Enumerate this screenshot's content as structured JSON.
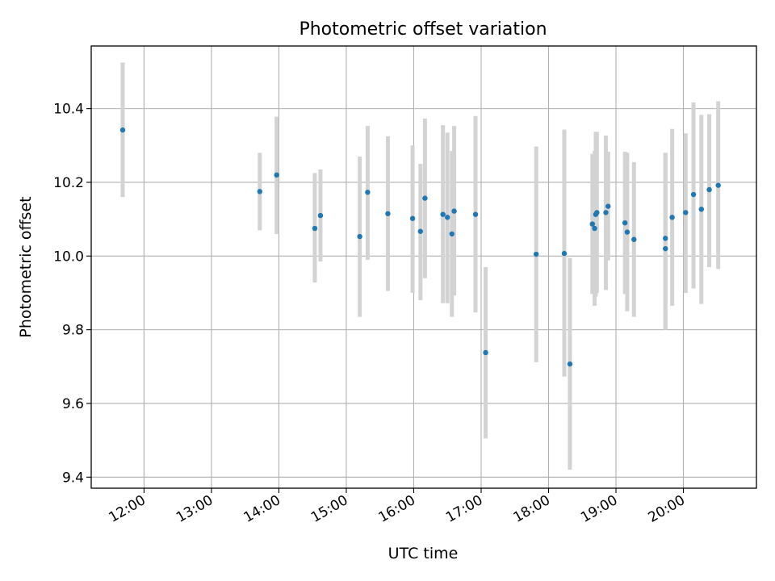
{
  "chart_data": {
    "type": "scatter",
    "title": "Photometric offset variation",
    "xlabel": "UTC time",
    "ylabel": "Photometric offset",
    "xlim": [
      "11:13",
      "21:05"
    ],
    "ylim": [
      9.37,
      10.57
    ],
    "x_ticks": [
      "12:00",
      "13:00",
      "14:00",
      "15:00",
      "16:00",
      "17:00",
      "18:00",
      "19:00",
      "20:00"
    ],
    "y_ticks": [
      9.4,
      9.6,
      9.8,
      10.0,
      10.2,
      10.4
    ],
    "y_tick_labels": [
      "9.4",
      "9.6",
      "9.8",
      "10.0",
      "10.2",
      "10.4"
    ],
    "grid": true,
    "marker_color": "#1f77b4",
    "errorbar_color": "#d3d3d3",
    "points": [
      {
        "time": "11:41",
        "y": 10.342,
        "lo": 10.16,
        "hi": 10.525
      },
      {
        "time": "13:43",
        "y": 10.175,
        "lo": 10.07,
        "hi": 10.28
      },
      {
        "time": "13:58",
        "y": 10.22,
        "lo": 10.06,
        "hi": 10.378
      },
      {
        "time": "14:32",
        "y": 10.075,
        "lo": 9.928,
        "hi": 10.225
      },
      {
        "time": "14:37",
        "y": 10.11,
        "lo": 9.985,
        "hi": 10.235
      },
      {
        "time": "15:12",
        "y": 10.053,
        "lo": 9.835,
        "hi": 10.27
      },
      {
        "time": "15:19",
        "y": 10.173,
        "lo": 9.99,
        "hi": 10.353
      },
      {
        "time": "15:37",
        "y": 10.115,
        "lo": 9.905,
        "hi": 10.325
      },
      {
        "time": "15:59",
        "y": 10.102,
        "lo": 9.9,
        "hi": 10.3
      },
      {
        "time": "16:06",
        "y": 10.067,
        "lo": 9.88,
        "hi": 10.25
      },
      {
        "time": "16:10",
        "y": 10.157,
        "lo": 9.94,
        "hi": 10.373
      },
      {
        "time": "16:26",
        "y": 10.113,
        "lo": 9.872,
        "hi": 10.355
      },
      {
        "time": "16:30",
        "y": 10.105,
        "lo": 9.872,
        "hi": 10.335
      },
      {
        "time": "16:34",
        "y": 10.06,
        "lo": 9.835,
        "hi": 10.285
      },
      {
        "time": "16:36",
        "y": 10.122,
        "lo": 9.893,
        "hi": 10.353
      },
      {
        "time": "16:55",
        "y": 10.113,
        "lo": 9.847,
        "hi": 10.38
      },
      {
        "time": "17:04",
        "y": 9.738,
        "lo": 9.505,
        "hi": 9.97
      },
      {
        "time": "17:49",
        "y": 10.005,
        "lo": 9.712,
        "hi": 10.297
      },
      {
        "time": "18:14",
        "y": 10.007,
        "lo": 9.673,
        "hi": 10.343
      },
      {
        "time": "18:19",
        "y": 9.707,
        "lo": 9.42,
        "hi": 9.995
      },
      {
        "time": "18:39",
        "y": 10.087,
        "lo": 9.897,
        "hi": 10.277
      },
      {
        "time": "18:41",
        "y": 10.075,
        "lo": 9.865,
        "hi": 10.285
      },
      {
        "time": "18:42",
        "y": 10.113,
        "lo": 9.89,
        "hi": 10.337
      },
      {
        "time": "18:43",
        "y": 10.118,
        "lo": 9.9,
        "hi": 10.337
      },
      {
        "time": "18:51",
        "y": 10.118,
        "lo": 9.908,
        "hi": 10.327
      },
      {
        "time": "18:53",
        "y": 10.135,
        "lo": 9.988,
        "hi": 10.283
      },
      {
        "time": "19:08",
        "y": 10.09,
        "lo": 9.897,
        "hi": 10.283
      },
      {
        "time": "19:10",
        "y": 10.065,
        "lo": 9.85,
        "hi": 10.28
      },
      {
        "time": "19:16",
        "y": 10.045,
        "lo": 9.835,
        "hi": 10.255
      },
      {
        "time": "19:44",
        "y": 10.02,
        "lo": 9.8,
        "hi": 10.28
      },
      {
        "time": "19:44",
        "y": 10.048,
        "lo": 9.8,
        "hi": 10.28
      },
      {
        "time": "19:50",
        "y": 10.105,
        "lo": 9.865,
        "hi": 10.345
      },
      {
        "time": "20:02",
        "y": 10.118,
        "lo": 9.9,
        "hi": 10.333
      },
      {
        "time": "20:09",
        "y": 10.167,
        "lo": 9.912,
        "hi": 10.417
      },
      {
        "time": "20:16",
        "y": 10.127,
        "lo": 9.87,
        "hi": 10.383
      },
      {
        "time": "20:23",
        "y": 10.18,
        "lo": 9.97,
        "hi": 10.385
      },
      {
        "time": "20:31",
        "y": 10.192,
        "lo": 9.965,
        "hi": 10.42
      }
    ]
  }
}
